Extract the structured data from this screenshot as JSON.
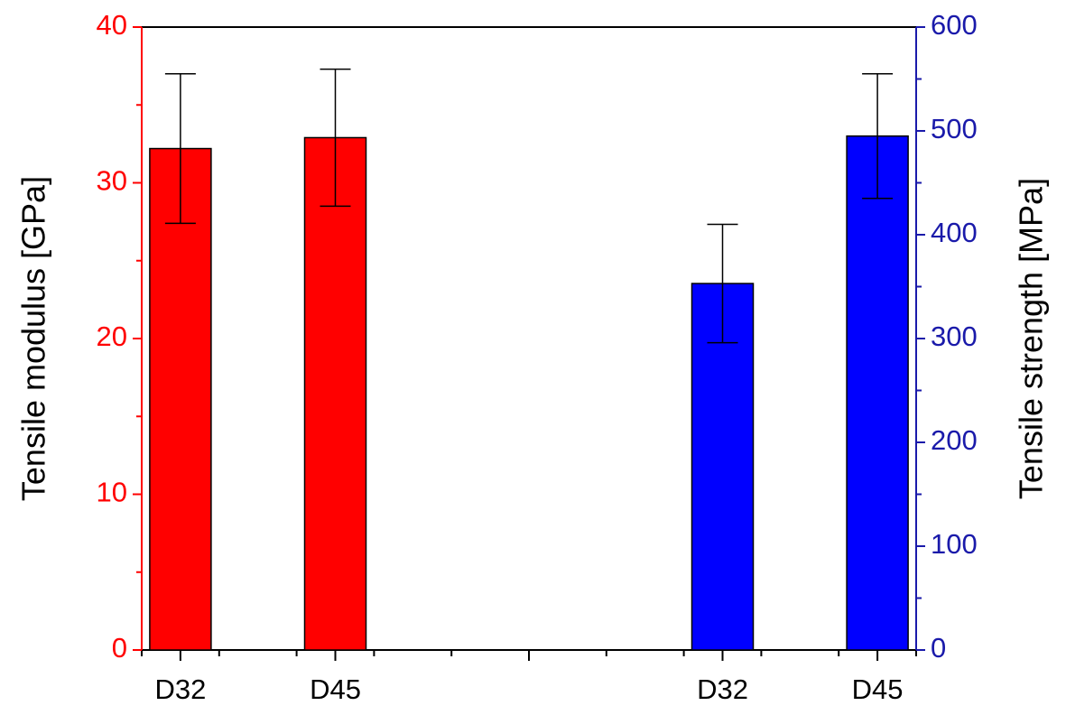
{
  "chart_data": {
    "type": "bar",
    "categories": [
      "D32",
      null,
      "D45",
      null,
      null,
      null,
      null,
      "D32",
      null,
      "D45"
    ],
    "ylabel": "Tensile modulus [GPa]",
    "y2label": "Tensile strength [MPa]",
    "ylim": [
      0,
      40
    ],
    "yticks": [
      0,
      10,
      20,
      30,
      40
    ],
    "y2lim": [
      0,
      600
    ],
    "y2ticks": [
      0,
      100,
      200,
      300,
      400,
      500,
      600
    ],
    "ycolor": "#ff0000",
    "y2color": "#1a1aaa",
    "series": [
      {
        "color": "#ff0000",
        "values": [
          32.2,
          null,
          32.9,
          null,
          null,
          null,
          null,
          null,
          null,
          null
        ],
        "error": [
          4.8,
          null,
          4.4,
          null,
          null,
          null,
          null,
          null,
          null,
          null
        ]
      },
      {
        "color": "#0000ff",
        "axis": "y2",
        "values": [
          null,
          null,
          null,
          null,
          null,
          null,
          null,
          353,
          null,
          495
        ],
        "error": [
          null,
          null,
          null,
          null,
          null,
          null,
          null,
          57,
          null,
          60
        ]
      }
    ]
  }
}
